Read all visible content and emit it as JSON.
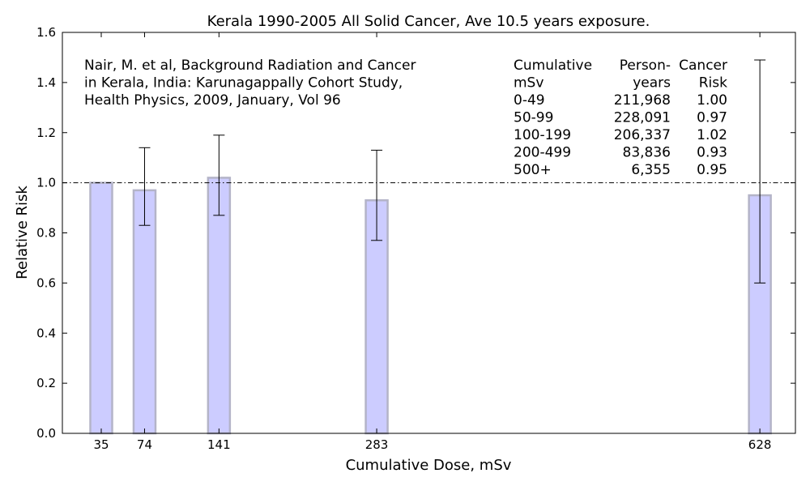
{
  "chart_data": {
    "type": "bar",
    "title": "Kerala 1990-2005 All Solid Cancer, Ave 10.5 years exposure.",
    "xlabel": "Cumulative Dose, mSv",
    "ylabel": "Relative Risk",
    "x_positions": [
      35,
      74,
      141,
      283,
      628
    ],
    "x_tick_labels": [
      "35",
      "74",
      "141",
      "283",
      "628"
    ],
    "values": [
      1.0,
      0.97,
      1.02,
      0.93,
      0.95
    ],
    "error_low": [
      null,
      0.83,
      0.87,
      0.77,
      0.6
    ],
    "error_high": [
      null,
      1.14,
      1.19,
      1.13,
      1.49
    ],
    "xlim": [
      0,
      660
    ],
    "ylim": [
      0,
      1.6
    ],
    "y_ticks": [
      0.0,
      0.2,
      0.4,
      0.6,
      0.8,
      1.0,
      1.2,
      1.4,
      1.6
    ],
    "y_tick_labels": [
      "0.0",
      "0.2",
      "0.4",
      "0.6",
      "0.8",
      "1.0",
      "1.2",
      "1.4",
      "1.6"
    ],
    "reference_line": 1.0,
    "bar_color": "#ccccff",
    "bar_edge_color": "#b4b4c8",
    "grid": false,
    "annotation_lines": [
      "Nair, M. et al, Background Radiation and Cancer",
      "in Kerala, India: Karunagappally Cohort Study,",
      "Health Physics, 2009, January, Vol 96"
    ],
    "table": {
      "headers": [
        [
          "Cumulative",
          "Person-",
          "Cancer"
        ],
        [
          "mSv",
          "years",
          "Risk"
        ]
      ],
      "rows": [
        [
          "0-49",
          "211,968",
          "1.00"
        ],
        [
          "50-99",
          "228,091",
          "0.97"
        ],
        [
          "100-199",
          "206,337",
          "1.02"
        ],
        [
          "200-499",
          "83,836",
          "0.93"
        ],
        [
          "500+",
          "6,355",
          "0.95"
        ]
      ]
    }
  }
}
